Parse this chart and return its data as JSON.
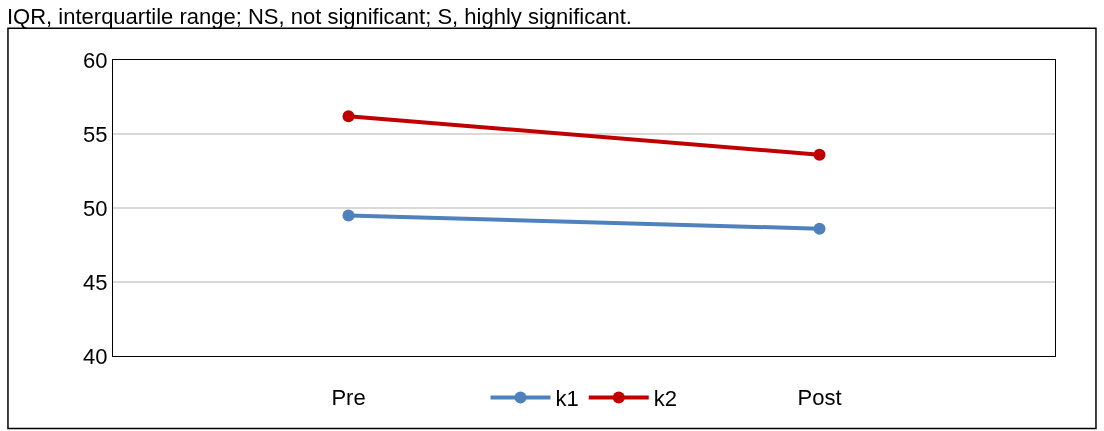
{
  "chart_data": {
    "type": "line",
    "annotations": [
      "IQR, interquartile range; NS, not significant; S, highly significant."
    ],
    "categories": [
      "Pre",
      "Post"
    ],
    "series": [
      {
        "name": "k1",
        "color": "#4f81bd",
        "values": [
          49.5,
          48.6
        ]
      },
      {
        "name": "k2",
        "color": "#c00000",
        "values": [
          56.2,
          53.6
        ]
      }
    ],
    "ylim": [
      40,
      60
    ],
    "yticks": [
      40,
      45,
      50,
      55,
      60
    ],
    "grid": "y",
    "legend": "bottom",
    "marker": "circle",
    "line_style": "solid"
  }
}
